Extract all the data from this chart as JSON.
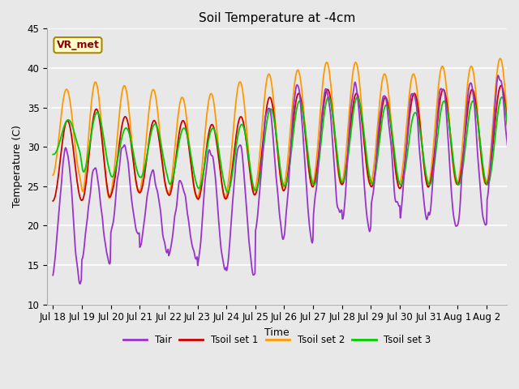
{
  "title": "Soil Temperature at -4cm",
  "xlabel": "Time",
  "ylabel": "Temperature (C)",
  "ylim": [
    10,
    45
  ],
  "background_color": "#e8e8e8",
  "plot_bg_color": "#e8e8e8",
  "grid_color": "white",
  "colors": {
    "Tair": "#9933cc",
    "Tsoil set 1": "#cc0000",
    "Tsoil set 2": "#ff9900",
    "Tsoil set 3": "#00cc00"
  },
  "legend_labels": [
    "Tair",
    "Tsoil set 1",
    "Tsoil set 2",
    "Tsoil set 3"
  ],
  "xtick_labels": [
    "Jul 18",
    "Jul 19",
    "Jul 20",
    "Jul 21",
    "Jul 22",
    "Jul 23",
    "Jul 24",
    "Jul 25",
    "Jul 26",
    "Jul 27",
    "Jul 28",
    "Jul 29",
    "Jul 30",
    "Jul 31",
    "Aug 1",
    "Aug 2"
  ],
  "xtick_positions": [
    0,
    1,
    2,
    3,
    4,
    5,
    6,
    7,
    8,
    9,
    10,
    11,
    12,
    13,
    14,
    15
  ],
  "annotation_text": "VR_met",
  "yticks": [
    10,
    15,
    20,
    25,
    30,
    35,
    40,
    45
  ]
}
